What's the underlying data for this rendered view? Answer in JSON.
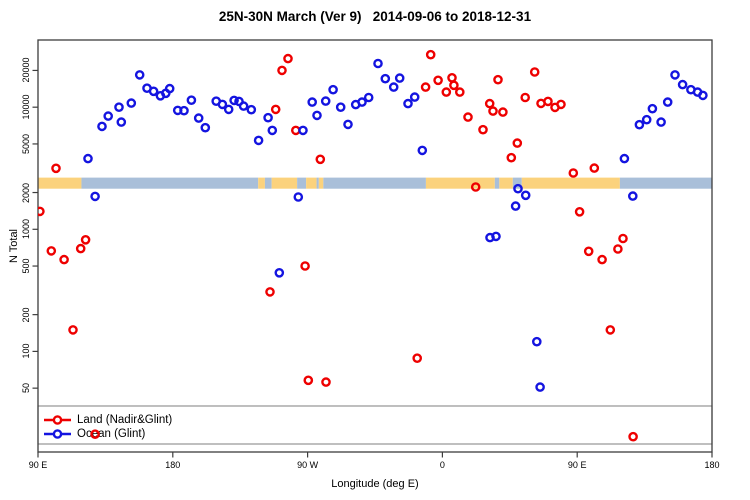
{
  "title": "25N-30N March (Ver 9)   2014-09-06 to 2018-12-31",
  "colors": {
    "land_series": "#ee0000",
    "ocean_series": "#1414e0",
    "band_land": "#fbd27d",
    "band_ocean": "#a9bfd9",
    "axis": "#3d3d3d",
    "legend_border": "#8a8a8a"
  },
  "chart_data": {
    "type": "scatter",
    "title": "25N-30N March (Ver 9)   2014-09-06 to 2018-12-31",
    "xlabel": "Longitude (deg E)",
    "ylabel": "N Total",
    "x_axis": {
      "range": [
        90,
        540
      ],
      "ticks": [
        {
          "value": 90,
          "label": "90 E"
        },
        {
          "value": 180,
          "label": "180"
        },
        {
          "value": 270,
          "label": "90 W"
        },
        {
          "value": 360,
          "label": "0"
        },
        {
          "value": 450,
          "label": "90 E"
        },
        {
          "value": 540,
          "label": "180"
        }
      ]
    },
    "y_axis": {
      "scale": "log",
      "range": [
        15,
        35500
      ],
      "ticks": [
        {
          "value": 50,
          "label": "50"
        },
        {
          "value": 100,
          "label": "100"
        },
        {
          "value": 200,
          "label": "200"
        },
        {
          "value": 500,
          "label": "500"
        },
        {
          "value": 1000,
          "label": "1000"
        },
        {
          "value": 2000,
          "label": "2000"
        },
        {
          "value": 5000,
          "label": "5000"
        },
        {
          "value": 10000,
          "label": "10000"
        },
        {
          "value": 20000,
          "label": "20000"
        }
      ]
    },
    "legend": [
      {
        "label": "Land (Nadir&Glint)",
        "color_key": "land_series"
      },
      {
        "label": "Ocean (Glint)",
        "color_key": "ocean_series"
      }
    ],
    "map_band": {
      "value_top": 2650,
      "value_bottom": 2150,
      "segments": [
        {
          "from": 90,
          "to": 119,
          "surface": "land"
        },
        {
          "from": 119,
          "to": 237,
          "surface": "ocean"
        },
        {
          "from": 237,
          "to": 241.5,
          "surface": "land"
        },
        {
          "from": 241.5,
          "to": 246,
          "surface": "ocean"
        },
        {
          "from": 246,
          "to": 263,
          "surface": "land"
        },
        {
          "from": 263,
          "to": 269,
          "surface": "ocean"
        },
        {
          "from": 269,
          "to": 276,
          "surface": "land"
        },
        {
          "from": 276,
          "to": 277.5,
          "surface": "ocean"
        },
        {
          "from": 277.5,
          "to": 280.5,
          "surface": "land"
        },
        {
          "from": 280.5,
          "to": 349,
          "surface": "ocean"
        },
        {
          "from": 349,
          "to": 395,
          "surface": "land"
        },
        {
          "from": 395,
          "to": 398,
          "surface": "ocean"
        },
        {
          "from": 398,
          "to": 407,
          "surface": "land"
        },
        {
          "from": 407,
          "to": 413,
          "surface": "ocean"
        },
        {
          "from": 413,
          "to": 478.5,
          "surface": "land"
        },
        {
          "from": 478.5,
          "to": 540,
          "surface": "ocean"
        }
      ]
    },
    "series": [
      {
        "name": "Land (Nadir&Glint)",
        "color_key": "land_series",
        "points": [
          [
            102.0,
            3160
          ],
          [
            91.3,
            1400
          ],
          [
            98.9,
            665
          ],
          [
            107.4,
            565
          ],
          [
            118.5,
            695
          ],
          [
            121.8,
            820
          ],
          [
            113.4,
            150
          ],
          [
            128.1,
            21
          ],
          [
            256.9,
            25000
          ],
          [
            252.9,
            20000
          ],
          [
            248.7,
            9600
          ],
          [
            262.1,
            6460
          ],
          [
            278.5,
            3740
          ],
          [
            268.3,
            500
          ],
          [
            244.9,
            307
          ],
          [
            270.5,
            58
          ],
          [
            282.3,
            56
          ],
          [
            343.2,
            88
          ],
          [
            382.2,
            2220
          ],
          [
            352.2,
            26900
          ],
          [
            348.8,
            14600
          ],
          [
            357.1,
            16600
          ],
          [
            362.6,
            13300
          ],
          [
            366.4,
            17400
          ],
          [
            367.7,
            15100
          ],
          [
            371.6,
            13300
          ],
          [
            377.1,
            8300
          ],
          [
            387.1,
            6540
          ],
          [
            391.6,
            10700
          ],
          [
            393.8,
            9290
          ],
          [
            397.1,
            16800
          ],
          [
            400.4,
            9120
          ],
          [
            410.0,
            5080
          ],
          [
            406.0,
            3860
          ],
          [
            421.6,
            19400
          ],
          [
            415.3,
            12000
          ],
          [
            425.8,
            10740
          ],
          [
            430.5,
            11150
          ],
          [
            435.2,
            9960
          ],
          [
            439.2,
            10540
          ],
          [
            447.4,
            2890
          ],
          [
            461.4,
            3170
          ],
          [
            451.6,
            1390
          ],
          [
            480.6,
            840
          ],
          [
            477.2,
            690
          ],
          [
            457.7,
            660
          ],
          [
            466.6,
            565
          ],
          [
            472.1,
            150
          ],
          [
            487.3,
            20
          ]
        ]
      },
      {
        "name": "Ocean (Glint)",
        "color_key": "ocean_series",
        "points": [
          [
            157.9,
            18400
          ],
          [
            162.8,
            14300
          ],
          [
            167.2,
            13500
          ],
          [
            171.7,
            12400
          ],
          [
            175.3,
            13000
          ],
          [
            177.9,
            14200
          ],
          [
            144.1,
            10000
          ],
          [
            152.3,
            10800
          ],
          [
            136.9,
            8450
          ],
          [
            132.7,
            6960
          ],
          [
            145.6,
            7550
          ],
          [
            192.4,
            11400
          ],
          [
            183.3,
            9410
          ],
          [
            187.5,
            9360
          ],
          [
            197.3,
            8140
          ],
          [
            201.7,
            6790
          ],
          [
            123.4,
            3790
          ],
          [
            128.1,
            1860
          ],
          [
            209.0,
            11200
          ],
          [
            213.1,
            10540
          ],
          [
            217.3,
            9590
          ],
          [
            220.9,
            11360
          ],
          [
            224.2,
            11150
          ],
          [
            227.3,
            10200
          ],
          [
            232.4,
            9540
          ],
          [
            243.6,
            8200
          ],
          [
            246.4,
            6460
          ],
          [
            237.3,
            5350
          ],
          [
            251.1,
            440
          ],
          [
            263.8,
            1840
          ],
          [
            266.9,
            6460
          ],
          [
            273.1,
            11000
          ],
          [
            282.1,
            11210
          ],
          [
            287.0,
            13900
          ],
          [
            276.3,
            8570
          ],
          [
            292.1,
            10000
          ],
          [
            297.0,
            7230
          ],
          [
            302.1,
            10500
          ],
          [
            306.3,
            11000
          ],
          [
            310.8,
            12000
          ],
          [
            317.0,
            22800
          ],
          [
            321.9,
            17100
          ],
          [
            327.5,
            14600
          ],
          [
            331.5,
            17300
          ],
          [
            337.0,
            10700
          ],
          [
            341.5,
            12100
          ],
          [
            346.6,
            4430
          ],
          [
            391.8,
            855
          ],
          [
            395.8,
            875
          ],
          [
            408.9,
            1550
          ],
          [
            410.5,
            2150
          ],
          [
            415.6,
            1900
          ],
          [
            423.0,
            120
          ],
          [
            425.2,
            51
          ],
          [
            481.5,
            3790
          ],
          [
            487.1,
            1870
          ],
          [
            491.5,
            7190
          ],
          [
            496.4,
            7900
          ],
          [
            500.2,
            9720
          ],
          [
            506.0,
            7550
          ],
          [
            510.4,
            11000
          ],
          [
            515.3,
            18400
          ],
          [
            520.4,
            15300
          ],
          [
            525.9,
            13900
          ],
          [
            530.4,
            13300
          ],
          [
            533.9,
            12500
          ]
        ]
      }
    ]
  }
}
